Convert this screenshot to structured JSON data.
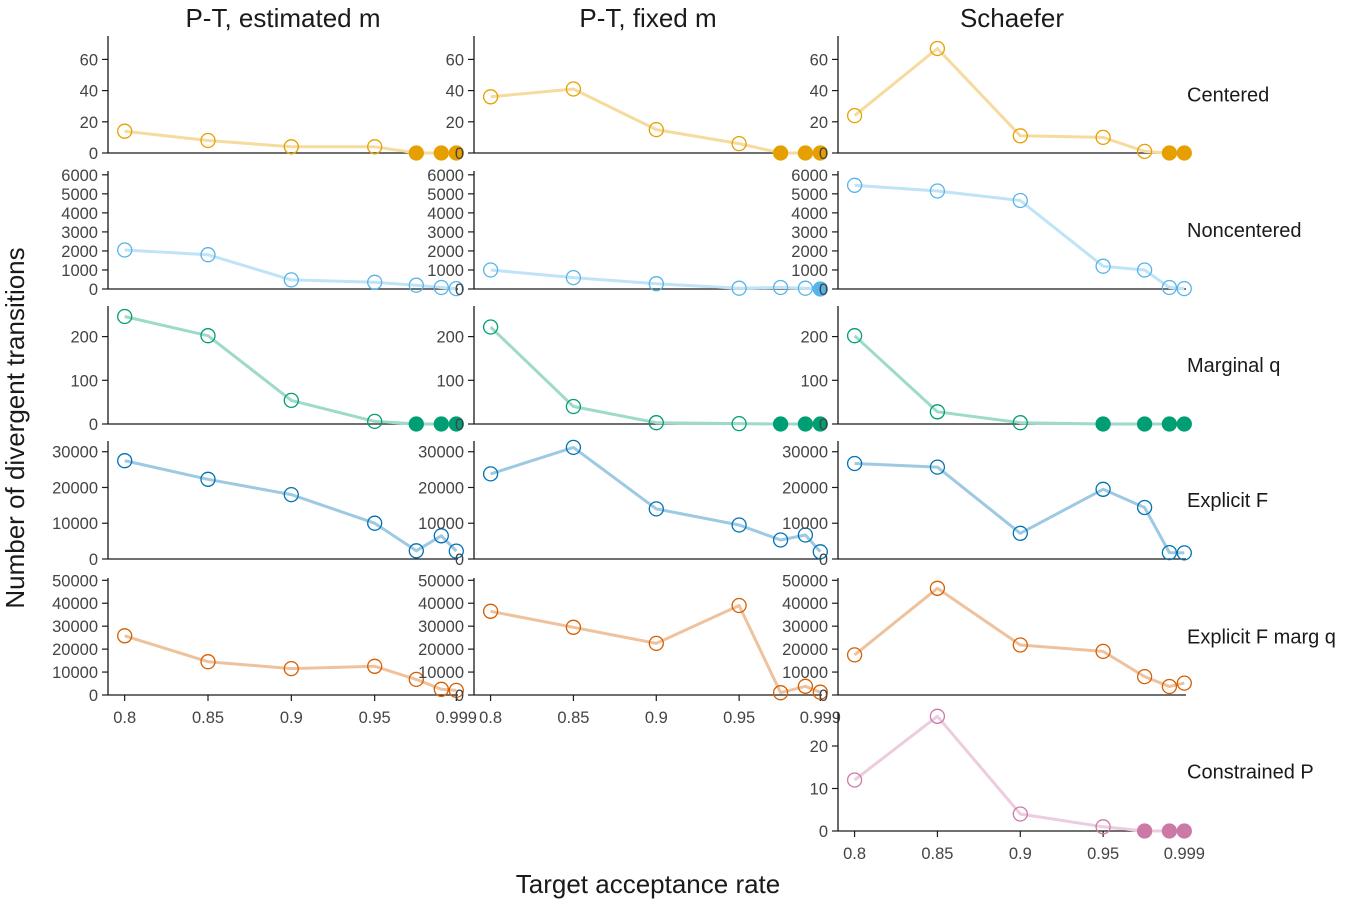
{
  "figure": {
    "xlabel": "Target acceptance rate",
    "ylabel": "Number of divergent transitions"
  },
  "chart_data": {
    "type": "line",
    "columns": [
      "P-T, estimated m",
      "P-T, fixed m",
      "Schaefer"
    ],
    "x": [
      0.8,
      0.85,
      0.9,
      0.95,
      0.975,
      0.99,
      0.999
    ],
    "x_tick_values": [
      0.8,
      0.85,
      0.9,
      0.95,
      0.999
    ],
    "x_tick_labels": [
      "0.8",
      "0.85",
      "0.9",
      "0.95",
      "0.999"
    ],
    "rows": [
      {
        "label": "Centered",
        "color": "#E69F00",
        "ylim": [
          0,
          75
        ],
        "yticks": [
          0,
          20,
          40,
          60
        ],
        "series": [
          [
            14,
            8,
            4,
            4,
            0,
            0,
            0
          ],
          [
            36,
            41,
            15,
            6,
            0,
            0,
            0
          ],
          [
            24,
            67,
            11,
            10,
            1,
            0,
            0
          ]
        ]
      },
      {
        "label": "Noncentered",
        "color": "#56B4E9",
        "ylim": [
          0,
          6200
        ],
        "yticks": [
          0,
          1000,
          2000,
          3000,
          4000,
          5000,
          6000
        ],
        "series": [
          [
            2050,
            1800,
            480,
            350,
            200,
            80,
            20
          ],
          [
            1000,
            600,
            280,
            40,
            80,
            40,
            0
          ],
          [
            5450,
            5150,
            4650,
            1200,
            1000,
            80,
            20
          ]
        ]
      },
      {
        "label": "Marginal q",
        "color": "#009E73",
        "ylim": [
          0,
          270
        ],
        "yticks": [
          0,
          100,
          200
        ],
        "series": [
          [
            246,
            202,
            54,
            6,
            0,
            0,
            0
          ],
          [
            222,
            40,
            3,
            1,
            0,
            0,
            0
          ],
          [
            202,
            28,
            3,
            0,
            0,
            0,
            0
          ]
        ]
      },
      {
        "label": "Explicit F",
        "color": "#0072B2",
        "ylim": [
          0,
          33000
        ],
        "yticks": [
          0,
          10000,
          20000,
          30000
        ],
        "series": [
          [
            27500,
            22300,
            18000,
            10000,
            2300,
            6500,
            2200
          ],
          [
            23800,
            31200,
            14000,
            9500,
            5300,
            6700,
            2000
          ],
          [
            26700,
            25700,
            7200,
            19500,
            14400,
            1800,
            1700
          ]
        ]
      },
      {
        "label": "Explicit F marg q",
        "color": "#D55E00",
        "ylim": [
          0,
          51000
        ],
        "yticks": [
          0,
          10000,
          20000,
          30000,
          40000,
          50000
        ],
        "series": [
          [
            25800,
            14500,
            11500,
            12500,
            6800,
            2500,
            2000
          ],
          [
            36500,
            29500,
            22500,
            39000,
            1000,
            3800,
            1200
          ],
          [
            17500,
            46500,
            21800,
            19000,
            8000,
            3700,
            5200
          ]
        ]
      },
      {
        "label": "Constrained P",
        "color": "#CC79A7",
        "ylim": [
          0,
          28
        ],
        "yticks": [
          0,
          10,
          20
        ],
        "series": [
          null,
          null,
          [
            12,
            27,
            4,
            1,
            0,
            0,
            0
          ]
        ]
      }
    ]
  }
}
